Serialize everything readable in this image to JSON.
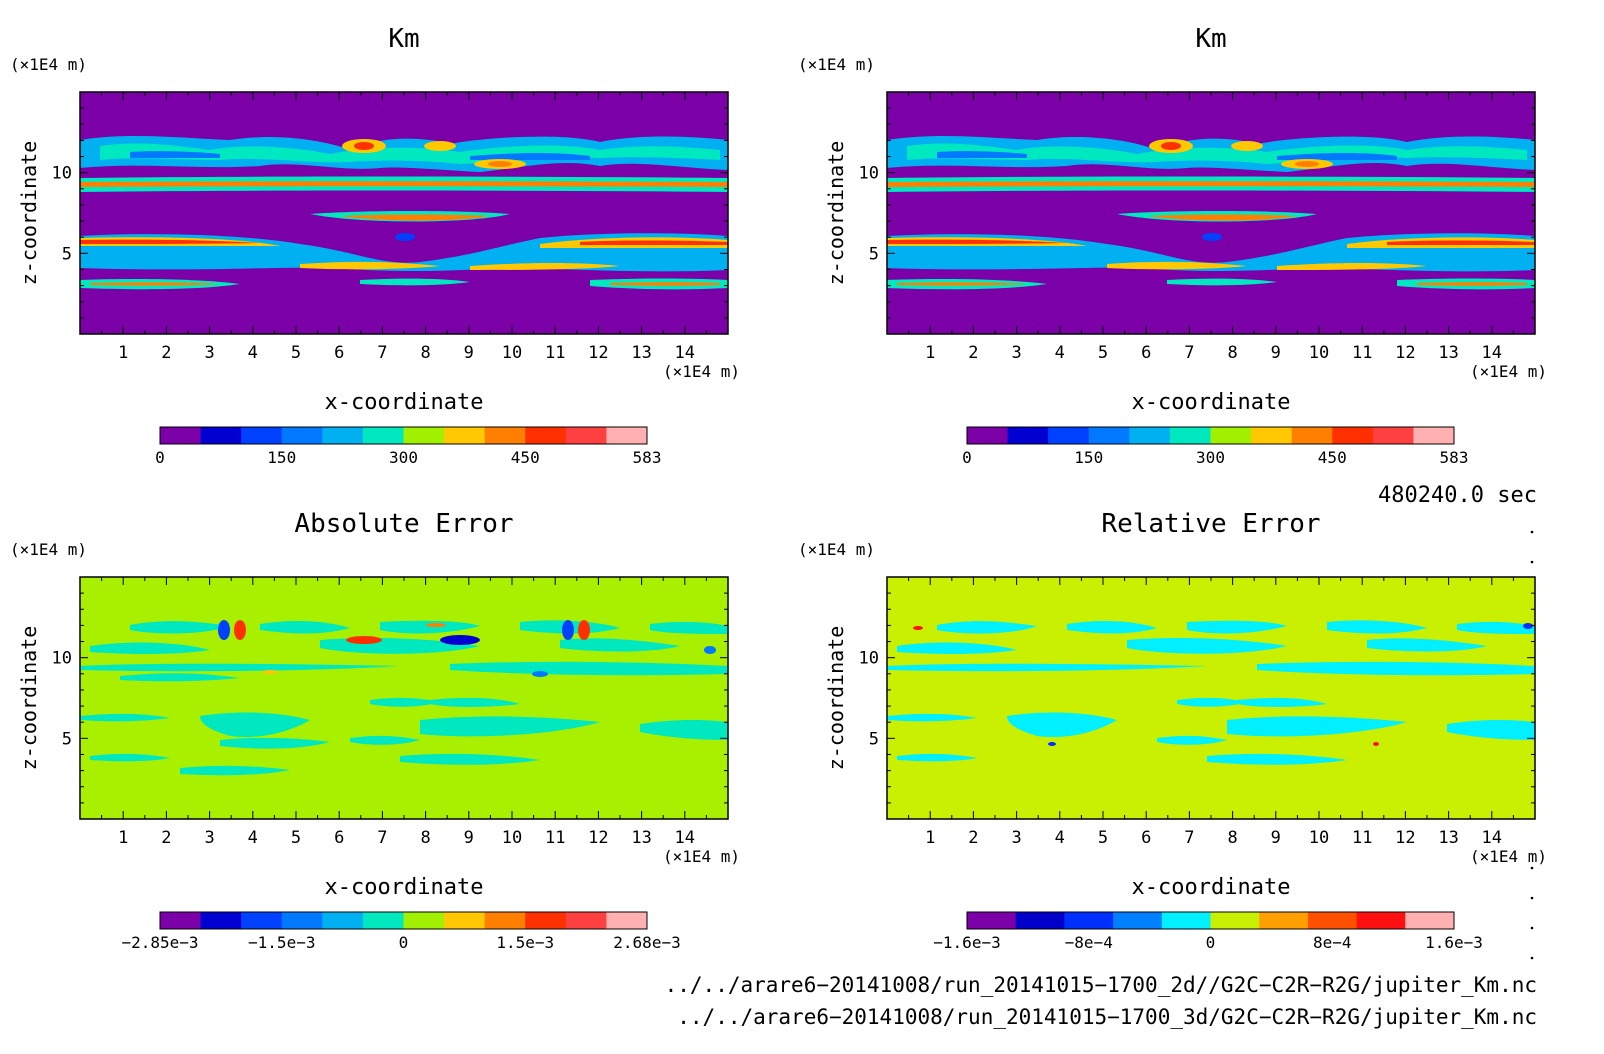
{
  "chart_data": [
    {
      "type": "heatmap",
      "title": "Km",
      "xlabel": "x-coordinate",
      "ylabel": "z-coordinate",
      "x_unit": "(×1E4 m)",
      "y_unit": "(×1E4 m)",
      "xlim": [
        0,
        15
      ],
      "ylim": [
        0,
        15
      ],
      "x_ticks": [
        "1",
        "2",
        "3",
        "4",
        "5",
        "6",
        "7",
        "8",
        "9",
        "10",
        "11",
        "12",
        "13",
        "14"
      ],
      "y_ticks": [
        "5",
        "10"
      ],
      "background_color": "#7c00a8",
      "colorbar": {
        "colors": [
          "#7c00a8",
          "#0000d0",
          "#0040ff",
          "#0078ff",
          "#00b0f0",
          "#00e8c0",
          "#a0f000",
          "#ffc800",
          "#ff8000",
          "#ff3000",
          "#ff4040",
          "#ffb0b0"
        ],
        "tick_labels": [
          "0",
          "150",
          "300",
          "450",
          "583"
        ],
        "range": [
          0,
          583
        ]
      }
    },
    {
      "type": "heatmap",
      "title": "Km",
      "xlabel": "x-coordinate",
      "ylabel": "z-coordinate",
      "x_unit": "(×1E4 m)",
      "y_unit": "(×1E4 m)",
      "xlim": [
        0,
        15
      ],
      "ylim": [
        0,
        15
      ],
      "x_ticks": [
        "1",
        "2",
        "3",
        "4",
        "5",
        "6",
        "7",
        "8",
        "9",
        "10",
        "11",
        "12",
        "13",
        "14"
      ],
      "y_ticks": [
        "5",
        "10"
      ],
      "background_color": "#7c00a8",
      "colorbar": {
        "colors": [
          "#7c00a8",
          "#0000d0",
          "#0040ff",
          "#0078ff",
          "#00b0f0",
          "#00e8c0",
          "#a0f000",
          "#ffc800",
          "#ff8000",
          "#ff3000",
          "#ff4040",
          "#ffb0b0"
        ],
        "tick_labels": [
          "0",
          "150",
          "300",
          "450",
          "583"
        ],
        "range": [
          0,
          583
        ]
      }
    },
    {
      "type": "heatmap",
      "title": "Absolute Error",
      "xlabel": "x-coordinate",
      "ylabel": "z-coordinate",
      "x_unit": "(×1E4 m)",
      "y_unit": "(×1E4 m)",
      "xlim": [
        0,
        15
      ],
      "ylim": [
        0,
        15
      ],
      "x_ticks": [
        "1",
        "2",
        "3",
        "4",
        "5",
        "6",
        "7",
        "8",
        "9",
        "10",
        "11",
        "12",
        "13",
        "14"
      ],
      "y_ticks": [
        "5",
        "10"
      ],
      "background_color": "#a8f000",
      "colorbar": {
        "colors": [
          "#7c00a8",
          "#0000d0",
          "#0040ff",
          "#0078ff",
          "#00b0f0",
          "#00e8c0",
          "#a0f000",
          "#ffc800",
          "#ff8000",
          "#ff3000",
          "#ff4040",
          "#ffb0b0"
        ],
        "tick_labels": [
          "−2.85e−3",
          "−1.5e−3",
          "0",
          "1.5e−3",
          "2.68e−3"
        ],
        "range": [
          -0.00285,
          0.00268
        ]
      }
    },
    {
      "type": "heatmap",
      "title": "Relative Error",
      "xlabel": "x-coordinate",
      "ylabel": "z-coordinate",
      "x_unit": "(×1E4 m)",
      "y_unit": "(×1E4 m)",
      "xlim": [
        0,
        15
      ],
      "ylim": [
        0,
        15
      ],
      "x_ticks": [
        "1",
        "2",
        "3",
        "4",
        "5",
        "6",
        "7",
        "8",
        "9",
        "10",
        "11",
        "12",
        "13",
        "14"
      ],
      "y_ticks": [
        "5",
        "10"
      ],
      "background_color": "#c8f000",
      "colorbar": {
        "colors": [
          "#7c00a8",
          "#0000c8",
          "#0030ff",
          "#0080ff",
          "#00f0ff",
          "#c8f000",
          "#ffa000",
          "#ff5000",
          "#ff1010",
          "#ffb0b0"
        ],
        "tick_labels": [
          "−1.6e−3",
          "−8e−4",
          "0",
          "8e−4",
          "1.6e−3"
        ],
        "range": [
          -0.0016,
          0.0016
        ]
      }
    }
  ],
  "time_label": "480240.0 sec",
  "file_paths": [
    "../../arare6−20141008/run_20141015−1700_2d//G2C−C2R−R2G/jupiter_Km.nc",
    "../../arare6−20141008/run_20141015−1700_3d/G2C−C2R−R2G/jupiter_Km.nc"
  ]
}
